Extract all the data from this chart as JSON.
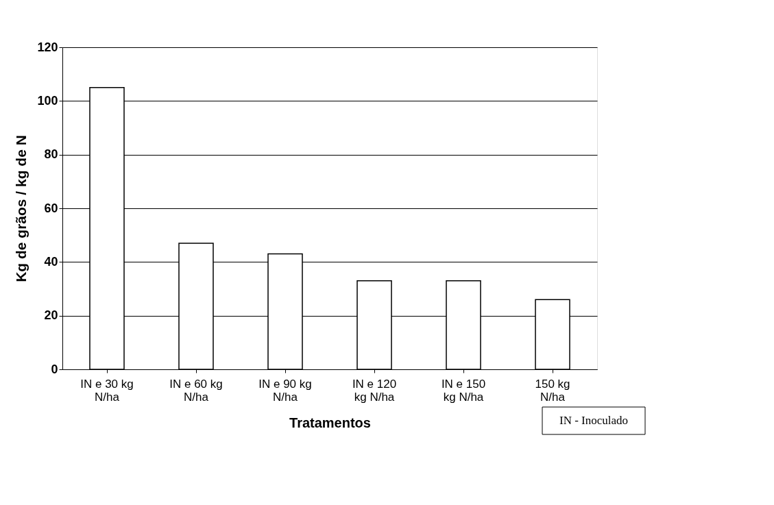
{
  "chart_data": {
    "type": "bar",
    "xlabel": "Tratamentos",
    "ylabel": "Kg de grãos / kg de N",
    "categories": [
      "IN e 30 kg\nN/ha",
      "IN e 60 kg\nN/ha",
      "IN e 90 kg\nN/ha",
      "IN e 120\nkg N/ha",
      "IN e 150\nkg N/ha",
      "150 kg\nN/ha"
    ],
    "values": [
      105,
      47,
      43,
      33,
      33,
      26
    ],
    "color": "#ffffff",
    "ylim": [
      0,
      120
    ],
    "yticks": [
      0,
      20,
      40,
      60,
      80,
      100,
      120
    ],
    "grid": "y",
    "annotations": [
      "IN - Inoculado"
    ]
  }
}
